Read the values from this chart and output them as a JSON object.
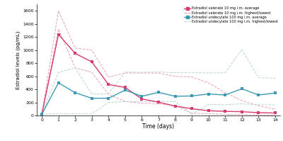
{
  "days": [
    0,
    1,
    2,
    3,
    4,
    5,
    6,
    7,
    8,
    9,
    10,
    11,
    12,
    13,
    14
  ],
  "ev_avg": [
    20,
    1240,
    950,
    820,
    475,
    430,
    255,
    205,
    145,
    105,
    75,
    65,
    60,
    45,
    40
  ],
  "ev_high": [
    20,
    1600,
    1030,
    1000,
    590,
    650,
    650,
    650,
    600,
    590,
    500,
    350,
    230,
    150,
    100
  ],
  "ev_low": [
    20,
    1320,
    730,
    660,
    325,
    215,
    190,
    180,
    155,
    35,
    30,
    20,
    15,
    10,
    5
  ],
  "eu_avg": [
    20,
    500,
    350,
    265,
    265,
    390,
    295,
    355,
    295,
    300,
    330,
    315,
    410,
    315,
    345
  ],
  "eu_high": [
    20,
    660,
    730,
    330,
    330,
    665,
    660,
    665,
    655,
    660,
    650,
    655,
    1010,
    580,
    570
  ],
  "eu_low": [
    20,
    30,
    30,
    30,
    200,
    215,
    215,
    215,
    215,
    25,
    170,
    165,
    180,
    165,
    165
  ],
  "ev_color": "#d63b6e",
  "eu_color": "#3b9ab2",
  "ev_dashed_color": "#e8a0b8",
  "eu_dashed_color": "#b8d4d4",
  "ylabel": "Estradiol levels (pg/mL)",
  "xlabel": "Time (days)",
  "ylim": [
    0,
    1700
  ],
  "yticks": [
    0,
    200,
    400,
    600,
    800,
    1000,
    1200,
    1400,
    1600
  ],
  "xlim": [
    -0.3,
    14.3
  ],
  "xticks": [
    0,
    1,
    2,
    3,
    4,
    5,
    6,
    7,
    8,
    9,
    10,
    11,
    12,
    13,
    14
  ],
  "legend_ev_avg": "Estradiol valerate 10 mg i.m. average",
  "legend_ev_hl": "Estradiol valerate 10 mg i.m. highest/lowest",
  "legend_eu_avg": "Estradiol undecylate 100 mg i.m. average",
  "legend_eu_hl": "Estradiol undecylate 100 mg i.m. highest/lowest"
}
